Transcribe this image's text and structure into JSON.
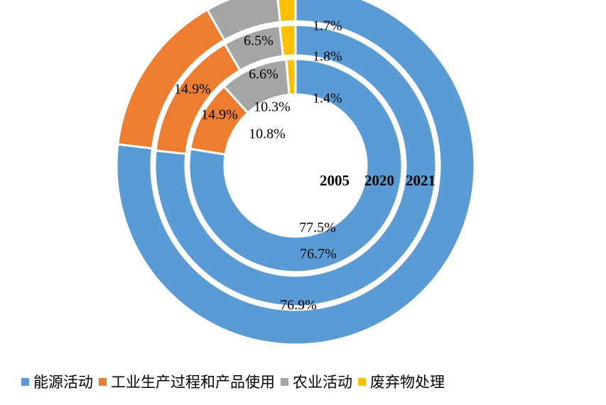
{
  "chart_data": {
    "type": "donut",
    "title": "",
    "categories": [
      "能源活动",
      "工业生产过程和产品使用",
      "农业活动",
      "废弃物处理"
    ],
    "colors": [
      "#5B9BD5",
      "#ED7D31",
      "#A5A5A5",
      "#FFC000"
    ],
    "series": [
      {
        "name": "2005",
        "values": [
          77.5,
          10.8,
          10.3,
          1.4
        ],
        "labels": [
          "77.5%",
          "10.8%",
          "10.3%",
          "1.4%"
        ]
      },
      {
        "name": "2020",
        "values": [
          76.7,
          14.9,
          6.6,
          1.8
        ],
        "labels": [
          "76.7%",
          "14.9%",
          "6.6%",
          "1.8%"
        ]
      },
      {
        "name": "2021",
        "values": [
          76.9,
          14.9,
          6.5,
          1.7
        ],
        "labels": [
          "76.9%",
          "14.9%",
          "6.5%",
          "1.7%"
        ]
      }
    ],
    "legend_position": "bottom"
  }
}
